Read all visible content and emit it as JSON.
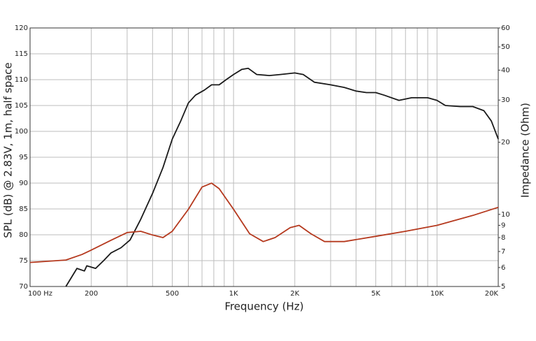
{
  "chart_data": {
    "type": "line",
    "xlabel": "Frequency (Hz)",
    "ylabel": "SPL (dB) @ 2.83V, 1m, half space",
    "y2label": "Impedance (Ohm)",
    "xscale": "log",
    "y2scale": "log",
    "grid": true,
    "xlim": [
      100,
      20000
    ],
    "xticks": [
      {
        "value": 100,
        "label": "100  Hz"
      },
      200,
      500,
      {
        "value": 1000,
        "label": "1K"
      },
      {
        "value": 2000,
        "label": "2K"
      },
      {
        "value": 5000,
        "label": "5K"
      },
      {
        "value": 10000,
        "label": "10K"
      },
      {
        "value": 20000,
        "label": "20K"
      }
    ],
    "xgrid": [
      300,
      400,
      600,
      700,
      800,
      900,
      3000,
      4000,
      6000,
      7000,
      8000,
      9000
    ],
    "ylim": [
      70,
      120
    ],
    "yticks": [
      70,
      75,
      80,
      85,
      90,
      95,
      100,
      105,
      110,
      115,
      120
    ],
    "y2lim": [
      5,
      60
    ],
    "y2ticks": [
      5,
      6,
      7,
      8,
      9,
      10,
      20,
      30,
      40,
      50,
      60
    ],
    "series": [
      {
        "name": "SPL",
        "color": "#1a1a1a",
        "axis": "y",
        "x": [
          150,
          170,
          185,
          190,
          210,
          230,
          250,
          280,
          310,
          350,
          400,
          450,
          500,
          550,
          600,
          650,
          720,
          780,
          850,
          920,
          1000,
          1100,
          1180,
          1300,
          1500,
          1700,
          2000,
          2200,
          2500,
          3000,
          3500,
          4000,
          4500,
          5000,
          5500,
          6500,
          7500,
          9000,
          10000,
          11000,
          13000,
          15000,
          17000,
          18500,
          20000
        ],
        "values": [
          70,
          73.5,
          73,
          74,
          73.5,
          75,
          76.5,
          77.5,
          79,
          83,
          88,
          93,
          98.5,
          102,
          105.5,
          107,
          108,
          109,
          109,
          110,
          111,
          112,
          112.2,
          111,
          110.8,
          111,
          111.3,
          111,
          109.5,
          109,
          108.5,
          107.8,
          107.5,
          107.5,
          107,
          106,
          106.5,
          106.5,
          106,
          105,
          104.8,
          104.8,
          104,
          102,
          98.5
        ]
      },
      {
        "name": "Impedance",
        "color": "#b5391e",
        "axis": "y2",
        "x": [
          100,
          150,
          180,
          200,
          250,
          300,
          350,
          400,
          450,
          500,
          600,
          700,
          780,
          850,
          1000,
          1200,
          1400,
          1600,
          1900,
          2100,
          2400,
          2800,
          3500,
          5000,
          7000,
          10000,
          15000,
          20000
        ],
        "values": [
          6.3,
          6.45,
          6.8,
          7.1,
          7.8,
          8.4,
          8.5,
          8.2,
          8.0,
          8.5,
          10.5,
          13.0,
          13.5,
          12.8,
          10.5,
          8.3,
          7.7,
          8.0,
          8.8,
          9.0,
          8.3,
          7.7,
          7.7,
          8.1,
          8.5,
          9.0,
          9.9,
          10.7
        ]
      }
    ]
  }
}
